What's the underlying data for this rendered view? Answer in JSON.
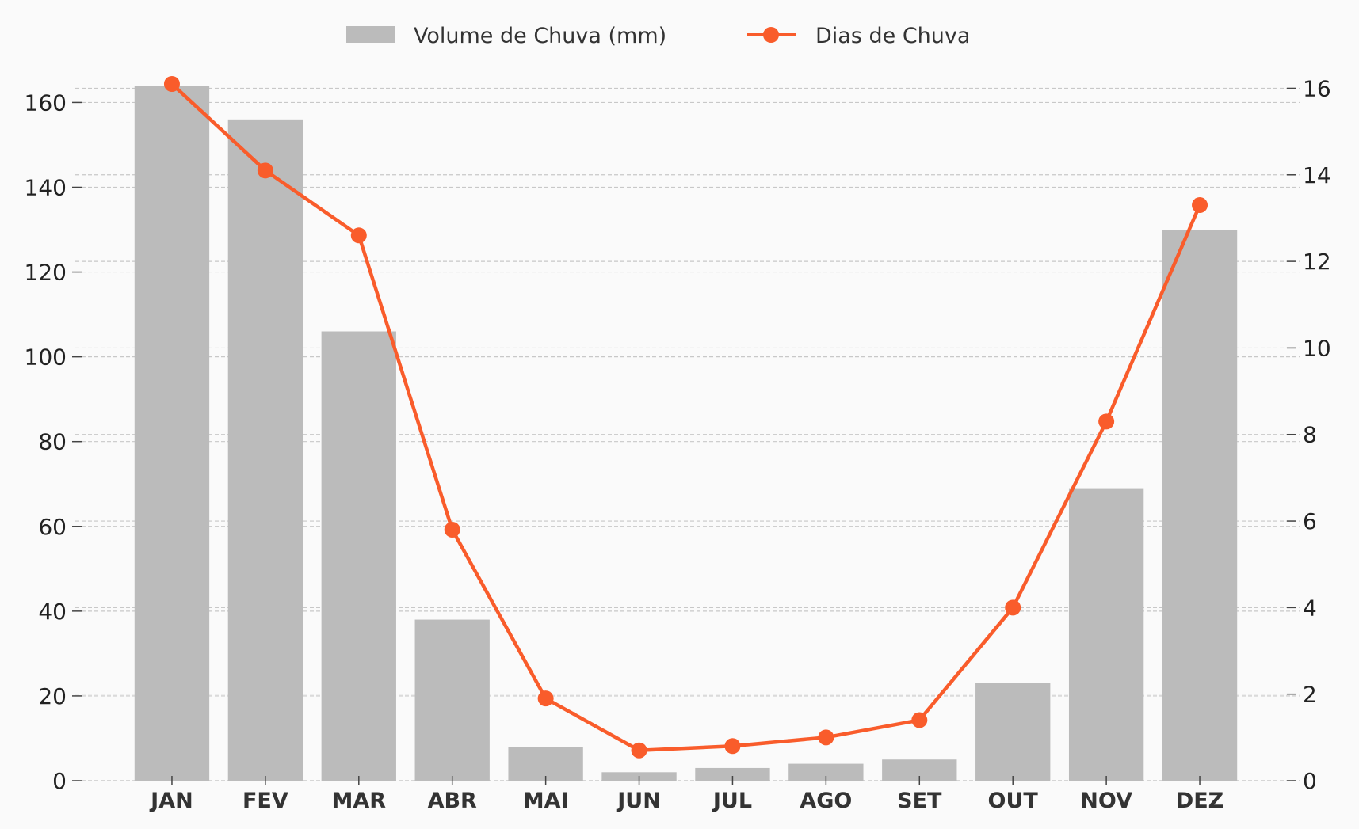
{
  "chart_data": {
    "type": "bar+line",
    "categories": [
      "JAN",
      "FEV",
      "MAR",
      "ABR",
      "MAI",
      "JUN",
      "JUL",
      "AGO",
      "SET",
      "OUT",
      "NOV",
      "DEZ"
    ],
    "series": [
      {
        "name": "Volume de Chuva (mm)",
        "type": "bar",
        "axis": "left",
        "color": "#bbbbbb",
        "values": [
          164,
          156,
          106,
          38,
          8,
          2,
          3,
          4,
          5,
          23,
          69,
          130
        ]
      },
      {
        "name": "Dias de Chuva",
        "type": "line",
        "axis": "right",
        "color": "#f95c2b",
        "values": [
          16.1,
          14.1,
          12.6,
          5.8,
          1.9,
          0.7,
          0.8,
          1.0,
          1.4,
          4.0,
          8.3,
          13.3
        ]
      }
    ],
    "left_axis": {
      "ylim": [
        0,
        164
      ],
      "ticks": [
        0,
        20,
        40,
        60,
        80,
        100,
        120,
        140,
        160
      ]
    },
    "right_axis": {
      "ylim": [
        0,
        16.1
      ],
      "ticks": [
        0,
        2,
        4,
        6,
        8,
        10,
        12,
        14,
        16
      ]
    },
    "grid": true,
    "legend_position": "top-center",
    "background": "#fafafa"
  }
}
